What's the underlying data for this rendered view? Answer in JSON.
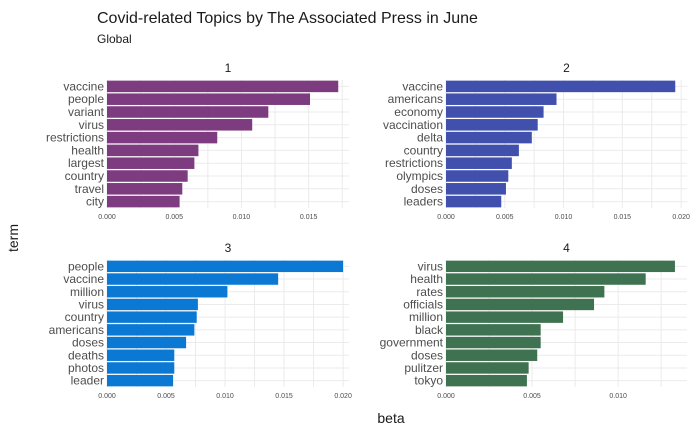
{
  "chart_data": {
    "type": "bar",
    "orientation": "horizontal",
    "title": "Covid-related Topics by The Associated Press in June",
    "subtitle": "Global",
    "xlabel": "beta",
    "ylabel": "term",
    "grid": true,
    "facets": [
      {
        "name": "1",
        "color": "#7d3c7f",
        "xlim": [
          0,
          0.018
        ],
        "xticks": [
          "0.000",
          "0.005",
          "0.010",
          "0.015"
        ],
        "categories": [
          "vaccine",
          "people",
          "variant",
          "virus",
          "restrictions",
          "health",
          "largest",
          "country",
          "travel",
          "city"
        ],
        "values": [
          0.0172,
          0.0151,
          0.012,
          0.0108,
          0.0082,
          0.0068,
          0.0065,
          0.006,
          0.0056,
          0.0054
        ]
      },
      {
        "name": "2",
        "color": "#4150ad",
        "xlim": [
          0,
          0.0205
        ],
        "xticks": [
          "0.000",
          "0.005",
          "0.010",
          "0.015",
          "0.020"
        ],
        "categories": [
          "vaccine",
          "americans",
          "economy",
          "vaccination",
          "delta",
          "country",
          "restrictions",
          "olympics",
          "doses",
          "leaders"
        ],
        "values": [
          0.0195,
          0.0094,
          0.0083,
          0.0078,
          0.0073,
          0.0062,
          0.0056,
          0.0053,
          0.0051,
          0.0047
        ]
      },
      {
        "name": "3",
        "color": "#0b78d3",
        "xlim": [
          0,
          0.0205
        ],
        "xticks": [
          "0.000",
          "0.005",
          "0.010",
          "0.015",
          "0.020"
        ],
        "categories": [
          "people",
          "vaccine",
          "million",
          "virus",
          "country",
          "americans",
          "doses",
          "deaths",
          "photos",
          "leader"
        ],
        "values": [
          0.02,
          0.0145,
          0.0102,
          0.0077,
          0.0076,
          0.0074,
          0.0067,
          0.0057,
          0.0057,
          0.0056
        ]
      },
      {
        "name": "4",
        "color": "#3f7250",
        "xlim": [
          0,
          0.014
        ],
        "xticks": [
          "0.000",
          "0.005",
          "0.010"
        ],
        "categories": [
          "virus",
          "health",
          "rates",
          "officials",
          "million",
          "black",
          "government",
          "doses",
          "pulitzer",
          "tokyo"
        ],
        "values": [
          0.0133,
          0.0116,
          0.0092,
          0.0086,
          0.0068,
          0.0055,
          0.0055,
          0.0053,
          0.0048,
          0.0047
        ]
      }
    ]
  }
}
